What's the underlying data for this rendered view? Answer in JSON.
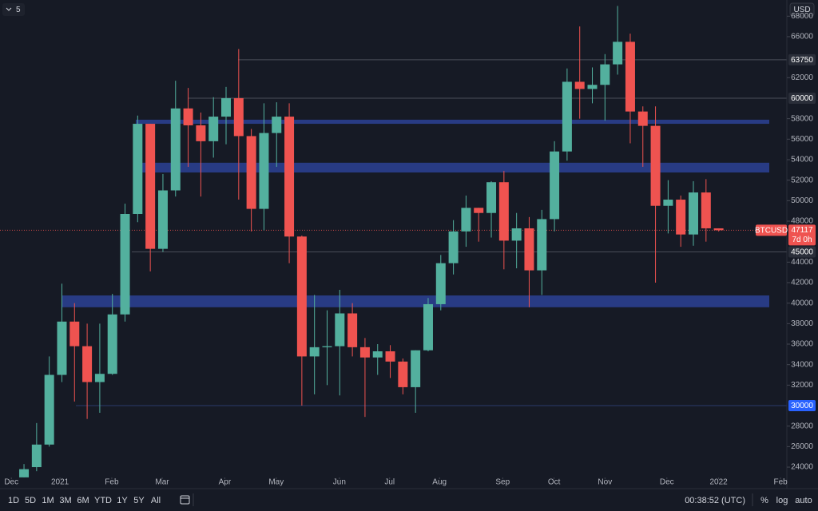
{
  "chart_data": {
    "type": "candlestick",
    "currency": "USD",
    "indicator_count": "5",
    "up_color": "#53b09e",
    "down_color": "#ef5350",
    "open": [
      23000,
      24000,
      26200,
      33000,
      38200,
      35800,
      32300,
      33100,
      38900,
      48700,
      57500,
      45300,
      51000,
      59000,
      57350,
      55800,
      58200,
      60000,
      56300,
      49200,
      56600,
      58200,
      46500,
      34800,
      35700,
      35800,
      39000,
      35700,
      34700,
      35300,
      34300,
      31800,
      35400,
      39900,
      43900,
      47000,
      49300,
      48800,
      51800,
      46100,
      47300,
      43200,
      48200,
      54800,
      61600,
      60900,
      61300,
      63300,
      65500,
      58700,
      57300,
      49500,
      50100,
      46700,
      50800,
      47300
    ],
    "high": [
      24300,
      28300,
      34800,
      41900,
      40000,
      38000,
      38000,
      40900,
      49700,
      58300,
      57500,
      52600,
      61700,
      61000,
      58600,
      60100,
      61100,
      64800,
      57000,
      59500,
      59600,
      59500,
      46600,
      40800,
      39300,
      41300,
      40000,
      36600,
      36000,
      35900,
      34600,
      35400,
      40500,
      44700,
      48100,
      50500,
      49300,
      51900,
      52900,
      48800,
      48400,
      49100,
      55800,
      62900,
      67000,
      63000,
      64300,
      69000,
      66300,
      59200,
      59200,
      52000,
      50500,
      51900,
      52100,
      47300
    ],
    "low": [
      23000,
      23600,
      26000,
      32300,
      30400,
      28700,
      29300,
      33000,
      38200,
      47900,
      43100,
      45000,
      50400,
      53300,
      50400,
      54200,
      55500,
      50100,
      47000,
      47100,
      53300,
      43900,
      30000,
      31100,
      32000,
      31000,
      34800,
      28900,
      33000,
      32700,
      31100,
      29300,
      35300,
      39300,
      42800,
      45500,
      46000,
      46400,
      43300,
      43400,
      39600,
      40800,
      47000,
      53900,
      58000,
      59500,
      57800,
      62300,
      55600,
      53300,
      42000,
      46800,
      45500,
      45600,
      46000,
      47000
    ],
    "close": [
      23800,
      26200,
      33000,
      38200,
      35800,
      32300,
      33100,
      38900,
      48700,
      57500,
      45300,
      51000,
      59000,
      57350,
      55800,
      58200,
      60000,
      56300,
      49200,
      56600,
      58200,
      46500,
      34800,
      35700,
      35800,
      39000,
      35700,
      34700,
      35300,
      34300,
      31800,
      35400,
      39900,
      43900,
      47000,
      49300,
      48800,
      51800,
      46100,
      47300,
      43200,
      48200,
      54800,
      61600,
      60900,
      61300,
      63300,
      65500,
      58700,
      57300,
      49500,
      50100,
      46700,
      50800,
      47300,
      47117
    ],
    "xlim": [
      -1.9,
      60.4
    ],
    "xticks": [
      {
        "value": -1,
        "label": "Dec"
      },
      {
        "value": 2.85,
        "label": "2021"
      },
      {
        "value": 6.95,
        "label": "Feb"
      },
      {
        "value": 10.94,
        "label": "Mar"
      },
      {
        "value": 15.9,
        "label": "Apr"
      },
      {
        "value": 19.97,
        "label": "May"
      },
      {
        "value": 24.97,
        "label": "Jun"
      },
      {
        "value": 28.95,
        "label": "Jul"
      },
      {
        "value": 32.9,
        "label": "Aug"
      },
      {
        "value": 37.9,
        "label": "Sep"
      },
      {
        "value": 41.97,
        "label": "Oct"
      },
      {
        "value": 46,
        "label": "Nov"
      },
      {
        "value": 50.9,
        "label": "Dec"
      },
      {
        "value": 55,
        "label": "2022"
      },
      {
        "value": 59.9,
        "label": "Feb"
      }
    ],
    "ylim": [
      22990,
      69580
    ],
    "yticks": [
      24000,
      26000,
      28000,
      32000,
      34000,
      36000,
      38000,
      40000,
      42000,
      44000,
      48000,
      50000,
      52000,
      54000,
      56000,
      58000,
      62000,
      66000,
      68000
    ],
    "levels": [
      63750,
      60000,
      45000,
      30000
    ],
    "level_colors": [
      "#434651",
      "#434651",
      "#434651",
      "#2962ff"
    ],
    "zones": [
      {
        "from": 57500,
        "to": 57900
      },
      {
        "from": 52750,
        "to": 53700
      },
      {
        "from": 39600,
        "to": 40750
      }
    ],
    "zone_color": "#2a3f8f",
    "symbol": "BTCUSD",
    "last_price": 47117,
    "countdown": "7d 0h"
  },
  "toolbar": {
    "ranges": [
      "1D",
      "5D",
      "1M",
      "3M",
      "6M",
      "YTD",
      "1Y",
      "5Y",
      "All"
    ],
    "clock": "00:38:52 (UTC)",
    "scale_buttons": [
      "%",
      "log",
      "auto"
    ]
  }
}
